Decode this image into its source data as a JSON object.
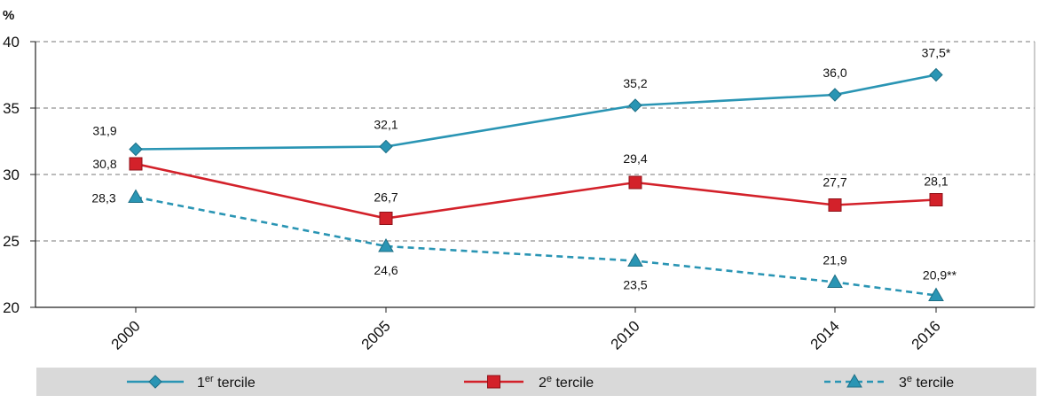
{
  "chart_data": {
    "type": "line",
    "title": "",
    "xlabel": "",
    "ylabel": "%",
    "ylim": [
      20,
      40
    ],
    "yticks": [
      "20",
      "25",
      "30",
      "35",
      "40"
    ],
    "yticks_values": [
      20,
      25,
      30,
      35,
      40
    ],
    "x": [
      2000,
      2005,
      2010,
      2014,
      2016
    ],
    "x_labels": [
      "2000",
      "2005",
      "2010",
      "2014",
      "2016"
    ],
    "grid": "horizontal dashed",
    "legend_position": "bottom",
    "series": [
      {
        "name": "1er tercile",
        "name_main": "1",
        "name_sup": "er",
        "name_rest": " tercile",
        "color": "#2a95b4",
        "marker": "diamond",
        "dash": false,
        "values": [
          31.9,
          32.1,
          35.2,
          36.0,
          37.5
        ],
        "labels": [
          "31,9",
          "32,1",
          "35,2",
          "36,0",
          "37,5*"
        ]
      },
      {
        "name": "2e tercile",
        "name_main": "2",
        "name_sup": "e",
        "name_rest": " tercile",
        "color": "#d3212a",
        "marker": "square",
        "dash": false,
        "values": [
          30.8,
          26.7,
          29.4,
          27.7,
          28.1
        ],
        "labels": [
          "30,8",
          "26,7",
          "29,4",
          "27,7",
          "28,1"
        ]
      },
      {
        "name": "3e tercile",
        "name_main": "3",
        "name_sup": "e",
        "name_rest": " tercile",
        "color": "#2a95b4",
        "marker": "triangle",
        "dash": true,
        "values": [
          28.3,
          24.6,
          23.5,
          21.9,
          20.9
        ],
        "labels": [
          "28,3",
          "24,6",
          "23,5",
          "21,9",
          "20,9**"
        ]
      }
    ]
  }
}
